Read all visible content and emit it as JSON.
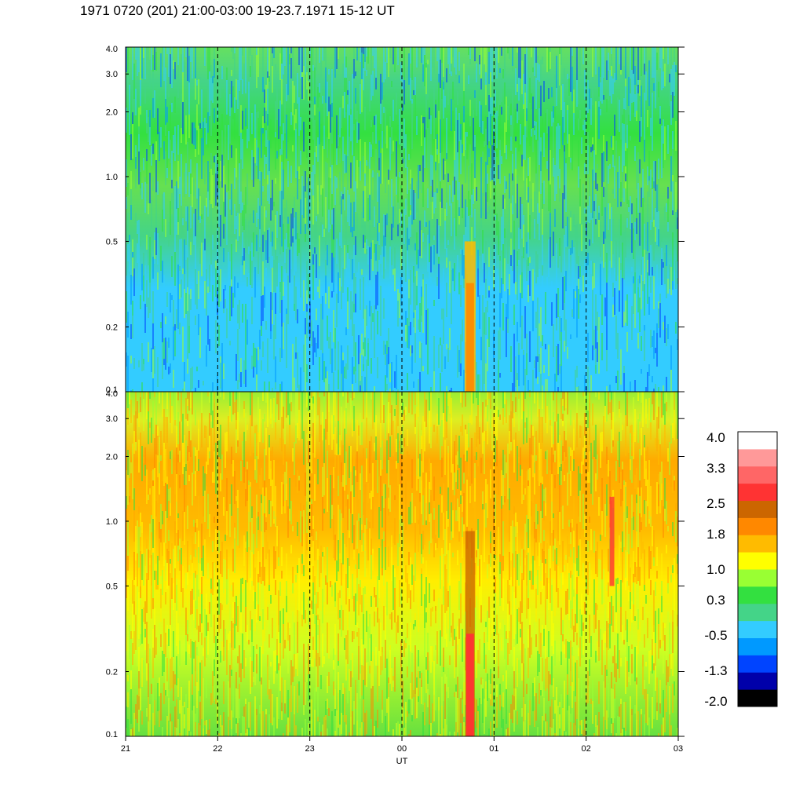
{
  "title": "1971 0720 (201) 21:00-03:00 19-23.7.1971  15-12 UT",
  "chart_data": {
    "type": "heatmap",
    "panels": [
      {
        "id": "top",
        "yscale": "log",
        "ylim": [
          0.1,
          4.0
        ],
        "yticks": [
          {
            "value": 0.1,
            "label": "0.1"
          },
          {
            "value": 0.2,
            "label": "0.2"
          },
          {
            "value": 0.5,
            "label": "0.5"
          },
          {
            "value": 1.0,
            "label": "1.0"
          },
          {
            "value": 2.0,
            "label": "2.0"
          },
          {
            "value": 3.0,
            "label": "3.0"
          },
          {
            "value": 4.0,
            "label": "4.0"
          }
        ]
      },
      {
        "id": "bottom",
        "yscale": "log",
        "ylim": [
          0.1,
          4.0
        ],
        "yticks": [
          {
            "value": 0.1,
            "label": "0.1"
          },
          {
            "value": 0.2,
            "label": "0.2"
          },
          {
            "value": 0.5,
            "label": "0.5"
          },
          {
            "value": 1.0,
            "label": "1.0"
          },
          {
            "value": 2.0,
            "label": "2.0"
          },
          {
            "value": 3.0,
            "label": "3.0"
          },
          {
            "value": 4.0,
            "label": "4.0"
          }
        ]
      }
    ],
    "xlabel": "UT",
    "xlim": [
      0,
      6
    ],
    "xticks": [
      {
        "value": 0,
        "label": "21"
      },
      {
        "value": 1,
        "label": "22"
      },
      {
        "value": 2,
        "label": "23"
      },
      {
        "value": 3,
        "label": "00"
      },
      {
        "value": 4,
        "label": "01"
      },
      {
        "value": 5,
        "label": "02"
      },
      {
        "value": 6,
        "label": "03"
      }
    ],
    "hour_gridlines": [
      1,
      2,
      3,
      4,
      5
    ],
    "grid": "dashed vertical lines at each hour",
    "colorbar": {
      "placement": "right",
      "colors": [
        "#000000",
        "#0000aa",
        "#0044ff",
        "#0099ff",
        "#33ccff",
        "#44d488",
        "#33e040",
        "#99ff33",
        "#ffff00",
        "#ffbb00",
        "#ff8800",
        "#cc6600",
        "#ff3333",
        "#ff6666",
        "#ff9999",
        "#ffffff"
      ],
      "labels": [
        {
          "value": -2.0,
          "label": "-2.0"
        },
        {
          "value": -1.3,
          "label": "-1.3"
        },
        {
          "value": -0.5,
          "label": "-0.5"
        },
        {
          "value": 0.3,
          "label": "0.3"
        },
        {
          "value": 1.0,
          "label": "1.0"
        },
        {
          "value": 1.8,
          "label": "1.8"
        },
        {
          "value": 2.5,
          "label": "2.5"
        },
        {
          "value": 3.3,
          "label": "3.3"
        },
        {
          "value": 4.0,
          "label": "4.0"
        }
      ],
      "range": [
        -2.0,
        4.0
      ]
    }
  }
}
